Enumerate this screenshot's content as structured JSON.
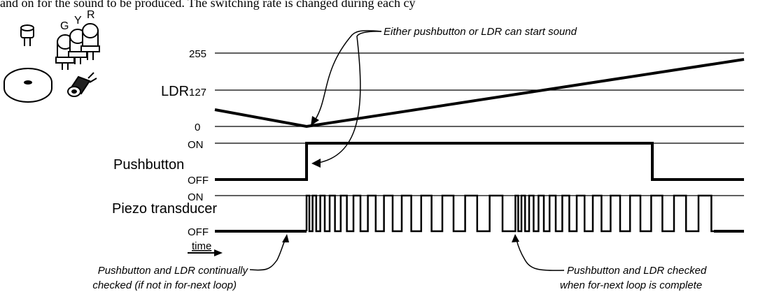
{
  "top_text": "and on for the sound to be produced. The switching rate is changed during each cy",
  "components": {
    "led_labels": [
      "G",
      "Y",
      "R"
    ]
  },
  "ldr": {
    "label": "LDR",
    "ticks": [
      "255",
      "127",
      "0"
    ]
  },
  "pushbutton": {
    "label": "Pushbutton",
    "on": "ON",
    "off": "OFF"
  },
  "piezo": {
    "label": "Piezo transducer",
    "on": "ON",
    "off": "OFF"
  },
  "time_label": "time",
  "annotations": {
    "either": "Either pushbutton or LDR can start sound",
    "left_line1": "Pushbutton and LDR continually",
    "left_line2": "checked (if not in for-next loop)",
    "right_line1": "Pushbutton and LDR checked",
    "right_line2": "when for-next loop is complete"
  }
}
